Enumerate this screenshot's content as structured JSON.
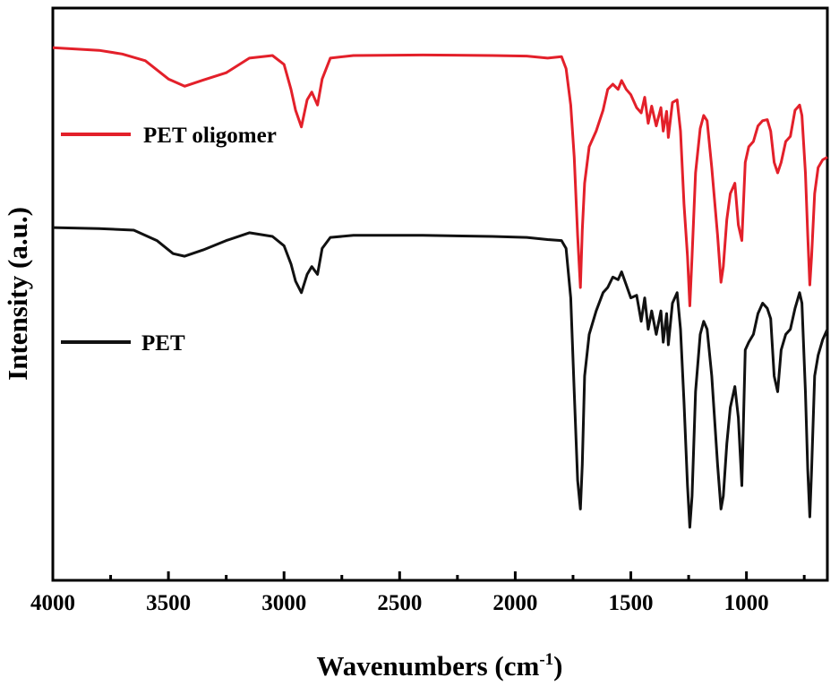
{
  "chart_data": {
    "type": "line",
    "title": "",
    "xlabel": "Wavenumbers (cm",
    "xlabel_superscript": "-1",
    "xlabel_close": ")",
    "ylabel": "Intensity (a.u.)",
    "xlim": [
      4000,
      650
    ],
    "ylim": [
      0,
      1
    ],
    "x_ticks": [
      "4000",
      "3500",
      "3000",
      "2500",
      "2000",
      "1500",
      "1000"
    ],
    "y_ticks": [],
    "grid": false,
    "legend_position": "left, beside each curve",
    "series": [
      {
        "name": "PET oligomer",
        "color": "#e3202a",
        "points": [
          [
            4000,
            0.96
          ],
          [
            3800,
            0.955
          ],
          [
            3700,
            0.948
          ],
          [
            3600,
            0.935
          ],
          [
            3500,
            0.9
          ],
          [
            3430,
            0.886
          ],
          [
            3350,
            0.898
          ],
          [
            3250,
            0.912
          ],
          [
            3150,
            0.94
          ],
          [
            3050,
            0.945
          ],
          [
            3000,
            0.928
          ],
          [
            2970,
            0.88
          ],
          [
            2950,
            0.84
          ],
          [
            2925,
            0.808
          ],
          [
            2900,
            0.86
          ],
          [
            2880,
            0.875
          ],
          [
            2855,
            0.85
          ],
          [
            2835,
            0.9
          ],
          [
            2800,
            0.94
          ],
          [
            2700,
            0.945
          ],
          [
            2400,
            0.946
          ],
          [
            2100,
            0.945
          ],
          [
            1950,
            0.944
          ],
          [
            1860,
            0.94
          ],
          [
            1800,
            0.943
          ],
          [
            1780,
            0.92
          ],
          [
            1760,
            0.85
          ],
          [
            1745,
            0.75
          ],
          [
            1730,
            0.6
          ],
          [
            1718,
            0.5
          ],
          [
            1710,
            0.61
          ],
          [
            1700,
            0.7
          ],
          [
            1680,
            0.77
          ],
          [
            1650,
            0.8
          ],
          [
            1620,
            0.84
          ],
          [
            1600,
            0.88
          ],
          [
            1578,
            0.89
          ],
          [
            1555,
            0.88
          ],
          [
            1540,
            0.897
          ],
          [
            1520,
            0.88
          ],
          [
            1500,
            0.87
          ],
          [
            1475,
            0.845
          ],
          [
            1455,
            0.835
          ],
          [
            1440,
            0.865
          ],
          [
            1425,
            0.815
          ],
          [
            1410,
            0.848
          ],
          [
            1390,
            0.81
          ],
          [
            1370,
            0.845
          ],
          [
            1360,
            0.8
          ],
          [
            1345,
            0.838
          ],
          [
            1338,
            0.788
          ],
          [
            1320,
            0.855
          ],
          [
            1300,
            0.86
          ],
          [
            1285,
            0.8
          ],
          [
            1270,
            0.66
          ],
          [
            1255,
            0.56
          ],
          [
            1245,
            0.465
          ],
          [
            1235,
            0.56
          ],
          [
            1220,
            0.72
          ],
          [
            1200,
            0.805
          ],
          [
            1185,
            0.83
          ],
          [
            1170,
            0.82
          ],
          [
            1150,
            0.73
          ],
          [
            1125,
            0.6
          ],
          [
            1110,
            0.51
          ],
          [
            1100,
            0.54
          ],
          [
            1085,
            0.63
          ],
          [
            1070,
            0.68
          ],
          [
            1050,
            0.7
          ],
          [
            1035,
            0.62
          ],
          [
            1020,
            0.59
          ],
          [
            1005,
            0.74
          ],
          [
            990,
            0.77
          ],
          [
            970,
            0.78
          ],
          [
            950,
            0.81
          ],
          [
            930,
            0.82
          ],
          [
            910,
            0.822
          ],
          [
            895,
            0.8
          ],
          [
            880,
            0.74
          ],
          [
            865,
            0.72
          ],
          [
            850,
            0.74
          ],
          [
            830,
            0.78
          ],
          [
            810,
            0.79
          ],
          [
            790,
            0.84
          ],
          [
            770,
            0.85
          ],
          [
            760,
            0.83
          ],
          [
            745,
            0.72
          ],
          [
            735,
            0.6
          ],
          [
            726,
            0.505
          ],
          [
            718,
            0.56
          ],
          [
            705,
            0.68
          ],
          [
            690,
            0.73
          ],
          [
            670,
            0.745
          ],
          [
            650,
            0.75
          ]
        ]
      },
      {
        "name": "PET",
        "color": "#111111",
        "points": [
          [
            4000,
            0.615
          ],
          [
            3800,
            0.613
          ],
          [
            3650,
            0.61
          ],
          [
            3550,
            0.59
          ],
          [
            3480,
            0.565
          ],
          [
            3430,
            0.56
          ],
          [
            3350,
            0.572
          ],
          [
            3250,
            0.59
          ],
          [
            3150,
            0.605
          ],
          [
            3050,
            0.598
          ],
          [
            3000,
            0.58
          ],
          [
            2970,
            0.545
          ],
          [
            2950,
            0.512
          ],
          [
            2925,
            0.49
          ],
          [
            2900,
            0.525
          ],
          [
            2880,
            0.54
          ],
          [
            2855,
            0.525
          ],
          [
            2835,
            0.575
          ],
          [
            2800,
            0.596
          ],
          [
            2700,
            0.6
          ],
          [
            2400,
            0.6
          ],
          [
            2100,
            0.598
          ],
          [
            1950,
            0.596
          ],
          [
            1860,
            0.592
          ],
          [
            1800,
            0.59
          ],
          [
            1780,
            0.575
          ],
          [
            1760,
            0.48
          ],
          [
            1745,
            0.3
          ],
          [
            1730,
            0.13
          ],
          [
            1718,
            0.075
          ],
          [
            1710,
            0.16
          ],
          [
            1700,
            0.33
          ],
          [
            1680,
            0.41
          ],
          [
            1650,
            0.455
          ],
          [
            1620,
            0.49
          ],
          [
            1600,
            0.5
          ],
          [
            1578,
            0.52
          ],
          [
            1555,
            0.515
          ],
          [
            1540,
            0.53
          ],
          [
            1520,
            0.505
          ],
          [
            1500,
            0.48
          ],
          [
            1475,
            0.485
          ],
          [
            1455,
            0.435
          ],
          [
            1440,
            0.48
          ],
          [
            1425,
            0.42
          ],
          [
            1410,
            0.455
          ],
          [
            1390,
            0.41
          ],
          [
            1370,
            0.455
          ],
          [
            1360,
            0.395
          ],
          [
            1345,
            0.45
          ],
          [
            1338,
            0.39
          ],
          [
            1320,
            0.47
          ],
          [
            1300,
            0.49
          ],
          [
            1285,
            0.42
          ],
          [
            1270,
            0.28
          ],
          [
            1255,
            0.12
          ],
          [
            1245,
            0.04
          ],
          [
            1235,
            0.1
          ],
          [
            1220,
            0.3
          ],
          [
            1200,
            0.41
          ],
          [
            1185,
            0.435
          ],
          [
            1170,
            0.42
          ],
          [
            1150,
            0.33
          ],
          [
            1125,
            0.16
          ],
          [
            1110,
            0.075
          ],
          [
            1100,
            0.1
          ],
          [
            1085,
            0.2
          ],
          [
            1070,
            0.27
          ],
          [
            1050,
            0.31
          ],
          [
            1035,
            0.25
          ],
          [
            1020,
            0.12
          ],
          [
            1005,
            0.38
          ],
          [
            990,
            0.395
          ],
          [
            970,
            0.41
          ],
          [
            950,
            0.45
          ],
          [
            930,
            0.47
          ],
          [
            910,
            0.46
          ],
          [
            895,
            0.44
          ],
          [
            880,
            0.33
          ],
          [
            865,
            0.3
          ],
          [
            850,
            0.38
          ],
          [
            830,
            0.41
          ],
          [
            810,
            0.42
          ],
          [
            790,
            0.46
          ],
          [
            770,
            0.49
          ],
          [
            760,
            0.47
          ],
          [
            745,
            0.3
          ],
          [
            735,
            0.15
          ],
          [
            726,
            0.06
          ],
          [
            718,
            0.15
          ],
          [
            705,
            0.33
          ],
          [
            690,
            0.37
          ],
          [
            670,
            0.4
          ],
          [
            650,
            0.42
          ]
        ]
      }
    ]
  }
}
